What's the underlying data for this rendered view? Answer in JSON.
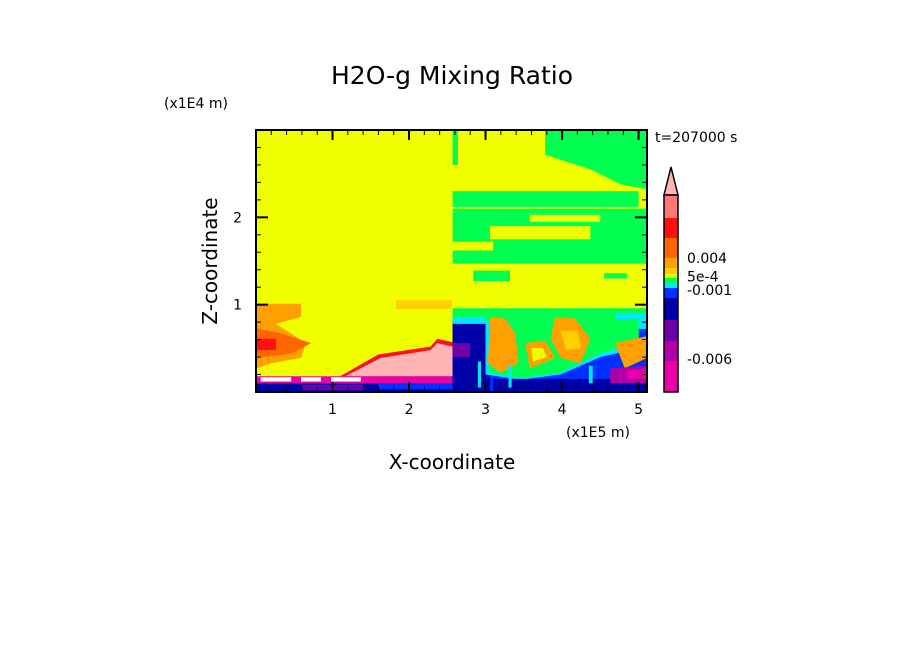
{
  "chart_data": {
    "type": "heatmap",
    "title": "H2O-g Mixing Ratio",
    "xlabel": "X-coordinate",
    "ylabel": "Z-coordinate",
    "x_unit": "(x1E5 m)",
    "y_unit": "(x1E4 m)",
    "time_label": "t=207000 s",
    "xlim": [
      0,
      5.11
    ],
    "ylim": [
      0,
      3.0
    ],
    "xticks": [
      "1",
      "2",
      "3",
      "4",
      "5"
    ],
    "yticks": [
      "1",
      "2"
    ],
    "colorbar": {
      "levels": [
        "#ff7878",
        "#ff1010",
        "#ff6600",
        "#ffa000",
        "#ffd000",
        "#f0ff00",
        "#00ff50",
        "#00e8ff",
        "#0030ff",
        "#0000a8",
        "#7000a8",
        "#b000a8",
        "#e800a8"
      ],
      "level_weights": [
        23,
        20,
        20,
        10,
        6,
        4,
        5,
        5,
        10,
        22,
        21,
        20,
        31
      ],
      "overflow_color": "#ffb4b4",
      "labels": [
        {
          "text": "0.004",
          "after_level": 2
        },
        {
          "text": "5e-4",
          "after_level": 4.6
        },
        {
          "text": "-0.001",
          "after_level": 7.2
        },
        {
          "text": "-0.006",
          "after_level": 10.9
        }
      ]
    },
    "background": "#f0ff00",
    "regions": [
      {
        "c": "#00ff50",
        "p": [
          [
            3.78,
            3.0
          ],
          [
            5.11,
            3.0
          ],
          [
            5.11,
            2.32
          ],
          [
            4.76,
            2.38
          ],
          [
            4.37,
            2.55
          ],
          [
            3.98,
            2.66
          ],
          [
            3.78,
            2.72
          ]
        ]
      },
      {
        "c": "#00ff50",
        "p": [
          [
            2.57,
            3.0
          ],
          [
            2.64,
            3.0
          ],
          [
            2.64,
            2.6
          ],
          [
            2.57,
            2.6
          ]
        ]
      },
      {
        "c": "#00ff50",
        "p": [
          [
            2.57,
            2.3
          ],
          [
            5.0,
            2.3
          ],
          [
            5.0,
            2.12
          ],
          [
            2.57,
            2.12
          ]
        ]
      },
      {
        "c": "#00ff50",
        "p": [
          [
            2.57,
            2.1
          ],
          [
            5.11,
            2.1
          ],
          [
            5.11,
            1.47
          ],
          [
            2.57,
            1.47
          ]
        ]
      },
      {
        "c": "#f0ff00",
        "p": [
          [
            3.58,
            2.03
          ],
          [
            4.5,
            2.03
          ],
          [
            4.5,
            1.95
          ],
          [
            3.58,
            1.95
          ]
        ]
      },
      {
        "c": "#f0ff00",
        "p": [
          [
            3.06,
            1.9
          ],
          [
            4.37,
            1.9
          ],
          [
            4.37,
            1.75
          ],
          [
            3.06,
            1.75
          ]
        ]
      },
      {
        "c": "#f0ff00",
        "p": [
          [
            2.57,
            1.72
          ],
          [
            3.1,
            1.72
          ],
          [
            3.1,
            1.62
          ],
          [
            2.57,
            1.62
          ]
        ]
      },
      {
        "c": "#00ff50",
        "p": [
          [
            2.84,
            1.39
          ],
          [
            3.32,
            1.39
          ],
          [
            3.32,
            1.27
          ],
          [
            2.84,
            1.27
          ]
        ]
      },
      {
        "c": "#00ff50",
        "p": [
          [
            4.55,
            1.36
          ],
          [
            4.85,
            1.36
          ],
          [
            4.85,
            1.3
          ],
          [
            4.55,
            1.3
          ]
        ]
      },
      {
        "c": "#ffa000",
        "p": [
          [
            0.01,
            1.01
          ],
          [
            0.59,
            1.01
          ],
          [
            0.59,
            0.86
          ],
          [
            0.26,
            0.78
          ],
          [
            0.46,
            0.67
          ],
          [
            0.65,
            0.56
          ],
          [
            0.59,
            0.39
          ],
          [
            0.2,
            0.33
          ],
          [
            0.01,
            0.27
          ]
        ]
      },
      {
        "c": "#ffd000",
        "p": [
          [
            1.83,
            1.05
          ],
          [
            2.56,
            1.05
          ],
          [
            2.56,
            0.95
          ],
          [
            1.83,
            0.95
          ]
        ]
      },
      {
        "c": "#ff6600",
        "p": [
          [
            0.01,
            0.73
          ],
          [
            0.33,
            0.67
          ],
          [
            0.72,
            0.56
          ],
          [
            0.46,
            0.44
          ],
          [
            0.01,
            0.39
          ]
        ]
      },
      {
        "c": "#ff1010",
        "p": [
          [
            0.01,
            0.61
          ],
          [
            0.26,
            0.61
          ],
          [
            0.26,
            0.48
          ],
          [
            0.01,
            0.48
          ]
        ]
      },
      {
        "c": "#ff1010",
        "p": [
          [
            1.1,
            0.18
          ],
          [
            1.6,
            0.43
          ],
          [
            2.28,
            0.52
          ],
          [
            2.37,
            0.61
          ],
          [
            2.57,
            0.57
          ],
          [
            2.57,
            0.18
          ]
        ]
      },
      {
        "c": "#ffb4b4",
        "p": [
          [
            1.17,
            0.18
          ],
          [
            1.63,
            0.39
          ],
          [
            2.28,
            0.48
          ],
          [
            2.37,
            0.56
          ],
          [
            2.57,
            0.52
          ],
          [
            2.57,
            0.18
          ]
        ]
      },
      {
        "c": "#e800a8",
        "p": [
          [
            0.01,
            0.18
          ],
          [
            2.57,
            0.18
          ],
          [
            2.57,
            0.1
          ],
          [
            0.01,
            0.1
          ]
        ]
      },
      {
        "c": "#ffffff",
        "p": [
          [
            0.06,
            0.17
          ],
          [
            0.46,
            0.17
          ],
          [
            0.46,
            0.12
          ],
          [
            0.06,
            0.12
          ]
        ]
      },
      {
        "c": "#ffffff",
        "p": [
          [
            0.59,
            0.17
          ],
          [
            0.85,
            0.17
          ],
          [
            0.85,
            0.12
          ],
          [
            0.59,
            0.12
          ]
        ]
      },
      {
        "c": "#ffffff",
        "p": [
          [
            0.98,
            0.17
          ],
          [
            1.37,
            0.17
          ],
          [
            1.37,
            0.12
          ],
          [
            0.98,
            0.12
          ]
        ]
      },
      {
        "c": "#0000a8",
        "p": [
          [
            0.01,
            0.1
          ],
          [
            2.57,
            0.1
          ],
          [
            2.57,
            0.0
          ],
          [
            0.01,
            0.0
          ]
        ]
      },
      {
        "c": "#7000a8",
        "p": [
          [
            0.6,
            0.08
          ],
          [
            1.4,
            0.08
          ],
          [
            1.4,
            0.02
          ],
          [
            0.6,
            0.02
          ]
        ]
      },
      {
        "c": "#0030ff",
        "p": [
          [
            1.6,
            0.1
          ],
          [
            2.57,
            0.1
          ],
          [
            2.57,
            0.03
          ],
          [
            1.6,
            0.03
          ]
        ]
      },
      {
        "c": "#00ff50",
        "p": [
          [
            2.57,
            0.96
          ],
          [
            5.11,
            0.96
          ],
          [
            5.11,
            0.72
          ],
          [
            2.57,
            0.72
          ]
        ]
      },
      {
        "c": "#00e8ff",
        "p": [
          [
            2.57,
            0.86
          ],
          [
            3.0,
            0.86
          ],
          [
            3.0,
            0.72
          ],
          [
            2.57,
            0.72
          ]
        ]
      },
      {
        "c": "#00e8ff",
        "p": [
          [
            4.7,
            0.9
          ],
          [
            5.11,
            0.9
          ],
          [
            5.11,
            0.6
          ],
          [
            4.7,
            0.6
          ]
        ]
      },
      {
        "c": "#0030ff",
        "p": [
          [
            2.57,
            0.78
          ],
          [
            5.11,
            0.72
          ],
          [
            5.11,
            0.0
          ],
          [
            2.57,
            0.0
          ]
        ]
      },
      {
        "c": "#0000a8",
        "p": [
          [
            2.57,
            0.78
          ],
          [
            3.06,
            0.78
          ],
          [
            3.06,
            0.0
          ],
          [
            2.57,
            0.0
          ]
        ]
      },
      {
        "c": "#7000a8",
        "p": [
          [
            2.57,
            0.56
          ],
          [
            2.8,
            0.56
          ],
          [
            2.8,
            0.4
          ],
          [
            2.57,
            0.4
          ]
        ]
      },
      {
        "c": "#00e8ff",
        "p": [
          [
            3.0,
            0.8
          ],
          [
            5.0,
            0.76
          ],
          [
            5.0,
            0.5
          ],
          [
            4.5,
            0.4
          ],
          [
            3.98,
            0.2
          ],
          [
            3.46,
            0.14
          ],
          [
            3.0,
            0.2
          ]
        ]
      },
      {
        "c": "#00ff50",
        "p": [
          [
            3.06,
            0.78
          ],
          [
            5.0,
            0.84
          ],
          [
            5.0,
            0.56
          ],
          [
            4.5,
            0.44
          ],
          [
            3.98,
            0.22
          ],
          [
            3.46,
            0.16
          ],
          [
            3.06,
            0.22
          ]
        ]
      },
      {
        "c": "#ffa000",
        "p": [
          [
            3.06,
            0.86
          ],
          [
            3.26,
            0.84
          ],
          [
            3.39,
            0.67
          ],
          [
            3.43,
            0.33
          ],
          [
            3.19,
            0.22
          ],
          [
            3.03,
            0.33
          ]
        ]
      },
      {
        "c": "#ffa000",
        "p": [
          [
            3.91,
            0.86
          ],
          [
            4.17,
            0.84
          ],
          [
            4.37,
            0.61
          ],
          [
            4.24,
            0.33
          ],
          [
            3.98,
            0.39
          ],
          [
            3.85,
            0.61
          ]
        ]
      },
      {
        "c": "#ffa000",
        "p": [
          [
            3.52,
            0.56
          ],
          [
            3.78,
            0.59
          ],
          [
            3.91,
            0.39
          ],
          [
            3.58,
            0.27
          ]
        ]
      },
      {
        "c": "#ffa000",
        "p": [
          [
            4.69,
            0.56
          ],
          [
            5.11,
            0.64
          ],
          [
            5.11,
            0.39
          ],
          [
            4.82,
            0.27
          ]
        ]
      },
      {
        "c": "#f0ff00",
        "p": [
          [
            3.6,
            0.5
          ],
          [
            3.75,
            0.5
          ],
          [
            3.8,
            0.4
          ],
          [
            3.62,
            0.35
          ]
        ]
      },
      {
        "c": "#ffd000",
        "p": [
          [
            3.98,
            0.7
          ],
          [
            4.2,
            0.7
          ],
          [
            4.25,
            0.5
          ],
          [
            4.05,
            0.48
          ]
        ]
      },
      {
        "c": "#0000a8",
        "p": [
          [
            3.1,
            0.15
          ],
          [
            5.11,
            0.15
          ],
          [
            5.11,
            0.0
          ],
          [
            3.1,
            0.0
          ]
        ]
      },
      {
        "c": "#b000a8",
        "p": [
          [
            4.63,
            0.27
          ],
          [
            5.11,
            0.3
          ],
          [
            5.11,
            0.1
          ],
          [
            4.63,
            0.1
          ]
        ]
      },
      {
        "c": "#e800a8",
        "p": [
          [
            4.85,
            0.25
          ],
          [
            5.11,
            0.27
          ],
          [
            5.11,
            0.15
          ],
          [
            4.85,
            0.15
          ]
        ]
      },
      {
        "c": "#00e8ff",
        "p": [
          [
            3.3,
            0.3
          ],
          [
            3.34,
            0.3
          ],
          [
            3.34,
            0.05
          ],
          [
            3.3,
            0.05
          ]
        ]
      },
      {
        "c": "#00e8ff",
        "p": [
          [
            4.35,
            0.3
          ],
          [
            4.4,
            0.3
          ],
          [
            4.4,
            0.1
          ],
          [
            4.35,
            0.1
          ]
        ]
      },
      {
        "c": "#00e8ff",
        "p": [
          [
            2.9,
            0.35
          ],
          [
            2.94,
            0.35
          ],
          [
            2.94,
            0.05
          ],
          [
            2.9,
            0.05
          ]
        ]
      }
    ]
  }
}
